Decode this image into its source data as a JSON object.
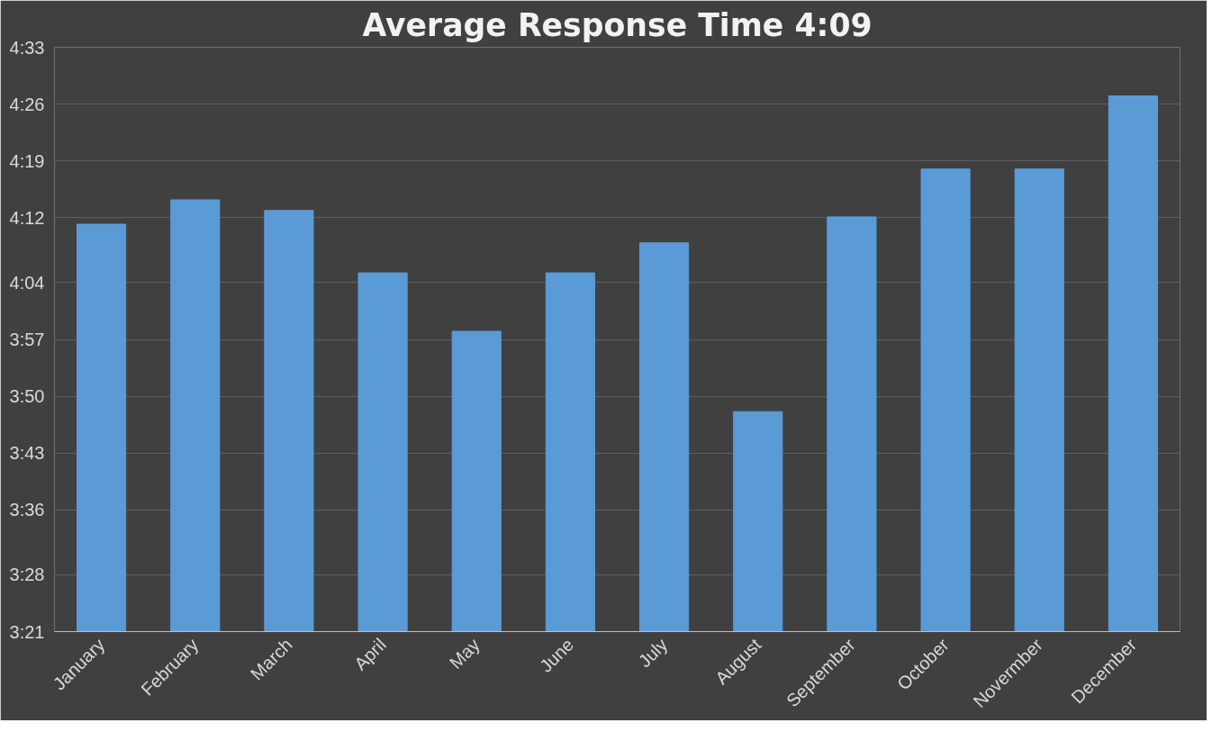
{
  "chart_data": {
    "type": "bar",
    "title": "Average Response Time 4:09",
    "categories": [
      "January",
      "February",
      "March",
      "April",
      "May",
      "June",
      "July",
      "August",
      "September",
      "October",
      "Novermber",
      "December"
    ],
    "values": [
      251.2,
      254.2,
      252.9,
      245.2,
      238.0,
      245.2,
      248.9,
      228.1,
      252.1,
      258.0,
      258.0,
      267.0
    ],
    "color": "#5b9bd5",
    "ylim": [
      201,
      273
    ],
    "yticks": [
      {
        "value": 201,
        "label": "3:21"
      },
      {
        "value": 208,
        "label": "3:28"
      },
      {
        "value": 216,
        "label": "3:36"
      },
      {
        "value": 223,
        "label": "3:43"
      },
      {
        "value": 230,
        "label": "3:50"
      },
      {
        "value": 237,
        "label": "3:57"
      },
      {
        "value": 244,
        "label": "4:04"
      },
      {
        "value": 252,
        "label": "4:12"
      },
      {
        "value": 259,
        "label": "4:19"
      },
      {
        "value": 266,
        "label": "4:26"
      },
      {
        "value": 273,
        "label": "4:33"
      }
    ],
    "grid": "y"
  }
}
